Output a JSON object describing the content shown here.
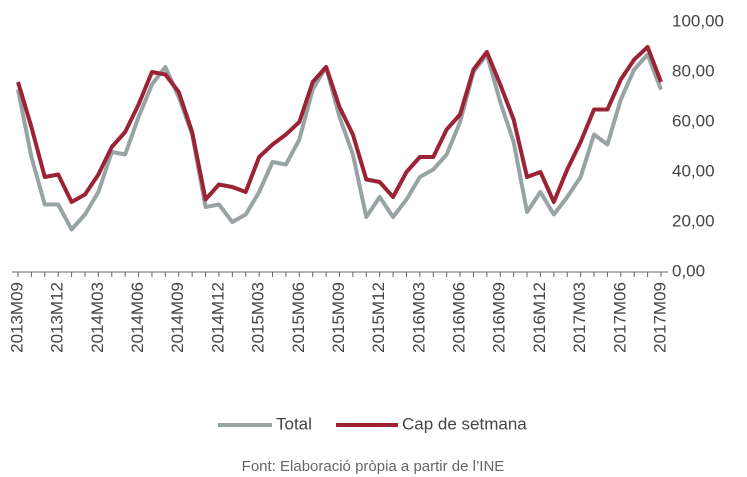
{
  "chart_data": {
    "type": "line",
    "categories": [
      "2013M09",
      null,
      null,
      "2013M12",
      null,
      null,
      "2014M03",
      null,
      null,
      "2014M06",
      null,
      null,
      "2014M09",
      null,
      null,
      "2014M12",
      null,
      null,
      "2015M03",
      null,
      null,
      "2015M06",
      null,
      null,
      "2015M09",
      null,
      null,
      "2015M12",
      null,
      null,
      "2016M03",
      null,
      null,
      "2016M06",
      null,
      null,
      "2016M09",
      null,
      null,
      "2016M12",
      null,
      null,
      "2017M03",
      null,
      null,
      "2017M06",
      null,
      null,
      "2017M09"
    ],
    "series": [
      {
        "name": "Total",
        "color": "#98a3a3",
        "values": [
          73,
          46,
          27,
          27,
          17,
          23,
          32,
          48,
          47,
          62,
          75,
          82,
          70,
          55,
          26,
          27,
          20,
          23,
          32,
          44,
          43,
          53,
          73,
          82,
          62,
          47,
          22,
          30,
          22,
          29,
          38,
          41,
          47,
          60,
          80,
          87,
          68,
          52,
          24,
          32,
          23,
          30,
          38,
          55,
          51,
          69,
          81,
          87,
          73
        ]
      },
      {
        "name": "Cap de setmana",
        "color": "#9b2335",
        "values": [
          76,
          58,
          38,
          39,
          28,
          31,
          39,
          50,
          56,
          67,
          80,
          79,
          72,
          56,
          29,
          35,
          34,
          32,
          46,
          51,
          55,
          60,
          76,
          82,
          66,
          55,
          37,
          36,
          30,
          40,
          46,
          46,
          57,
          63,
          81,
          88,
          75,
          61,
          38,
          40,
          28,
          41,
          52,
          65,
          65,
          77,
          85,
          90,
          76
        ]
      }
    ],
    "ylim": [
      0,
      100
    ],
    "yticks": [
      {
        "value": 0,
        "label": "0,00"
      },
      {
        "value": 20,
        "label": "20,00"
      },
      {
        "value": 40,
        "label": "40,00"
      },
      {
        "value": 60,
        "label": "60,00"
      },
      {
        "value": 80,
        "label": "80,00"
      },
      {
        "value": 100,
        "label": "100,00"
      }
    ],
    "grid": false,
    "legend": "bottom",
    "source": "Font: Elaboració pròpia a partir de l’INE"
  }
}
